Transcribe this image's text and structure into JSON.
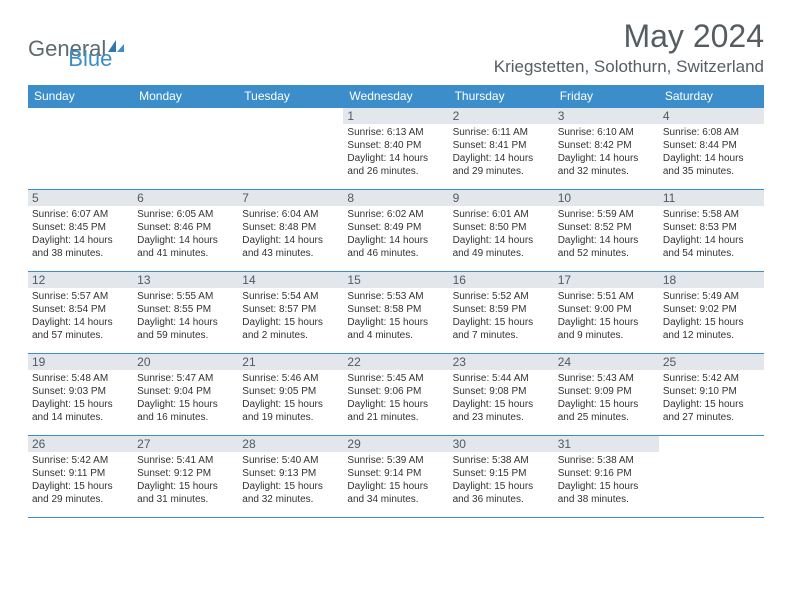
{
  "logo": {
    "general": "General",
    "blue": "Blue"
  },
  "title": "May 2024",
  "location": "Kriegstetten, Solothurn, Switzerland",
  "colors": {
    "header_bg": "#3b8ec9",
    "daynum_bg": "#e3e7eb",
    "border": "#3b8ec9",
    "title_color": "#555d63",
    "logo_gray": "#5e6a72",
    "logo_blue": "#3b8ec9",
    "page_bg": "#ffffff"
  },
  "days_of_week": [
    "Sunday",
    "Monday",
    "Tuesday",
    "Wednesday",
    "Thursday",
    "Friday",
    "Saturday"
  ],
  "weeks": [
    [
      null,
      null,
      null,
      {
        "n": "1",
        "sr": "6:13 AM",
        "ss": "8:40 PM",
        "dl": "14 hours and 26 minutes."
      },
      {
        "n": "2",
        "sr": "6:11 AM",
        "ss": "8:41 PM",
        "dl": "14 hours and 29 minutes."
      },
      {
        "n": "3",
        "sr": "6:10 AM",
        "ss": "8:42 PM",
        "dl": "14 hours and 32 minutes."
      },
      {
        "n": "4",
        "sr": "6:08 AM",
        "ss": "8:44 PM",
        "dl": "14 hours and 35 minutes."
      }
    ],
    [
      {
        "n": "5",
        "sr": "6:07 AM",
        "ss": "8:45 PM",
        "dl": "14 hours and 38 minutes."
      },
      {
        "n": "6",
        "sr": "6:05 AM",
        "ss": "8:46 PM",
        "dl": "14 hours and 41 minutes."
      },
      {
        "n": "7",
        "sr": "6:04 AM",
        "ss": "8:48 PM",
        "dl": "14 hours and 43 minutes."
      },
      {
        "n": "8",
        "sr": "6:02 AM",
        "ss": "8:49 PM",
        "dl": "14 hours and 46 minutes."
      },
      {
        "n": "9",
        "sr": "6:01 AM",
        "ss": "8:50 PM",
        "dl": "14 hours and 49 minutes."
      },
      {
        "n": "10",
        "sr": "5:59 AM",
        "ss": "8:52 PM",
        "dl": "14 hours and 52 minutes."
      },
      {
        "n": "11",
        "sr": "5:58 AM",
        "ss": "8:53 PM",
        "dl": "14 hours and 54 minutes."
      }
    ],
    [
      {
        "n": "12",
        "sr": "5:57 AM",
        "ss": "8:54 PM",
        "dl": "14 hours and 57 minutes."
      },
      {
        "n": "13",
        "sr": "5:55 AM",
        "ss": "8:55 PM",
        "dl": "14 hours and 59 minutes."
      },
      {
        "n": "14",
        "sr": "5:54 AM",
        "ss": "8:57 PM",
        "dl": "15 hours and 2 minutes."
      },
      {
        "n": "15",
        "sr": "5:53 AM",
        "ss": "8:58 PM",
        "dl": "15 hours and 4 minutes."
      },
      {
        "n": "16",
        "sr": "5:52 AM",
        "ss": "8:59 PM",
        "dl": "15 hours and 7 minutes."
      },
      {
        "n": "17",
        "sr": "5:51 AM",
        "ss": "9:00 PM",
        "dl": "15 hours and 9 minutes."
      },
      {
        "n": "18",
        "sr": "5:49 AM",
        "ss": "9:02 PM",
        "dl": "15 hours and 12 minutes."
      }
    ],
    [
      {
        "n": "19",
        "sr": "5:48 AM",
        "ss": "9:03 PM",
        "dl": "15 hours and 14 minutes."
      },
      {
        "n": "20",
        "sr": "5:47 AM",
        "ss": "9:04 PM",
        "dl": "15 hours and 16 minutes."
      },
      {
        "n": "21",
        "sr": "5:46 AM",
        "ss": "9:05 PM",
        "dl": "15 hours and 19 minutes."
      },
      {
        "n": "22",
        "sr": "5:45 AM",
        "ss": "9:06 PM",
        "dl": "15 hours and 21 minutes."
      },
      {
        "n": "23",
        "sr": "5:44 AM",
        "ss": "9:08 PM",
        "dl": "15 hours and 23 minutes."
      },
      {
        "n": "24",
        "sr": "5:43 AM",
        "ss": "9:09 PM",
        "dl": "15 hours and 25 minutes."
      },
      {
        "n": "25",
        "sr": "5:42 AM",
        "ss": "9:10 PM",
        "dl": "15 hours and 27 minutes."
      }
    ],
    [
      {
        "n": "26",
        "sr": "5:42 AM",
        "ss": "9:11 PM",
        "dl": "15 hours and 29 minutes."
      },
      {
        "n": "27",
        "sr": "5:41 AM",
        "ss": "9:12 PM",
        "dl": "15 hours and 31 minutes."
      },
      {
        "n": "28",
        "sr": "5:40 AM",
        "ss": "9:13 PM",
        "dl": "15 hours and 32 minutes."
      },
      {
        "n": "29",
        "sr": "5:39 AM",
        "ss": "9:14 PM",
        "dl": "15 hours and 34 minutes."
      },
      {
        "n": "30",
        "sr": "5:38 AM",
        "ss": "9:15 PM",
        "dl": "15 hours and 36 minutes."
      },
      {
        "n": "31",
        "sr": "5:38 AM",
        "ss": "9:16 PM",
        "dl": "15 hours and 38 minutes."
      },
      null
    ]
  ],
  "labels": {
    "sunrise": "Sunrise:",
    "sunset": "Sunset:",
    "daylight": "Daylight:"
  }
}
